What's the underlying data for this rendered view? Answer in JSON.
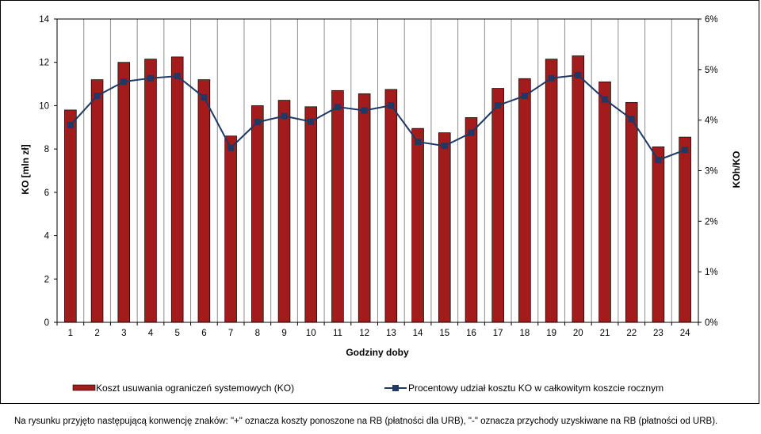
{
  "chart_data": {
    "type": "bar",
    "xlabel": "Godziny doby",
    "ylabel": "KO [mln zł]",
    "y2label": "KOh/KO",
    "categories": [
      "1",
      "2",
      "3",
      "4",
      "5",
      "6",
      "7",
      "8",
      "9",
      "10",
      "11",
      "12",
      "13",
      "14",
      "15",
      "16",
      "17",
      "18",
      "19",
      "20",
      "21",
      "22",
      "23",
      "24"
    ],
    "ylim": [
      0,
      14
    ],
    "yticks": [
      "0",
      "2",
      "4",
      "6",
      "8",
      "10",
      "12",
      "14"
    ],
    "y2lim": [
      0,
      6
    ],
    "y2ticks": [
      "0%",
      "1%",
      "2%",
      "3%",
      "4%",
      "5%",
      "6%"
    ],
    "grid": "vertical lines between categories",
    "legend_position": "bottom",
    "series": [
      {
        "name": "Koszt usuwania ograniczeń systemowych (KO)",
        "type": "bar",
        "axis": "left",
        "color": "#a31b1b",
        "values": [
          9.8,
          11.2,
          12.0,
          12.15,
          12.25,
          11.2,
          8.6,
          10.0,
          10.25,
          9.95,
          10.7,
          10.55,
          10.75,
          8.95,
          8.75,
          9.45,
          10.8,
          11.25,
          12.15,
          12.3,
          11.1,
          10.15,
          8.1,
          8.55
        ]
      },
      {
        "name": "Procentowy udział kosztu KO w całkowitym koszcie rocznym",
        "type": "line",
        "axis": "right",
        "color": "#1f3864",
        "values": [
          3.9,
          4.48,
          4.76,
          4.83,
          4.87,
          4.45,
          3.45,
          3.96,
          4.08,
          3.97,
          4.26,
          4.19,
          4.29,
          3.57,
          3.49,
          3.75,
          4.29,
          4.48,
          4.83,
          4.89,
          4.41,
          4.02,
          3.21,
          3.41
        ]
      }
    ],
    "footnote": "Na rysunku przyjęto następującą konwencję znaków: \"+\" oznacza koszty ponoszone na RB (płatności dla URB), \"-\" oznacza przychody uzyskiwane na RB (płatności od URB)."
  }
}
